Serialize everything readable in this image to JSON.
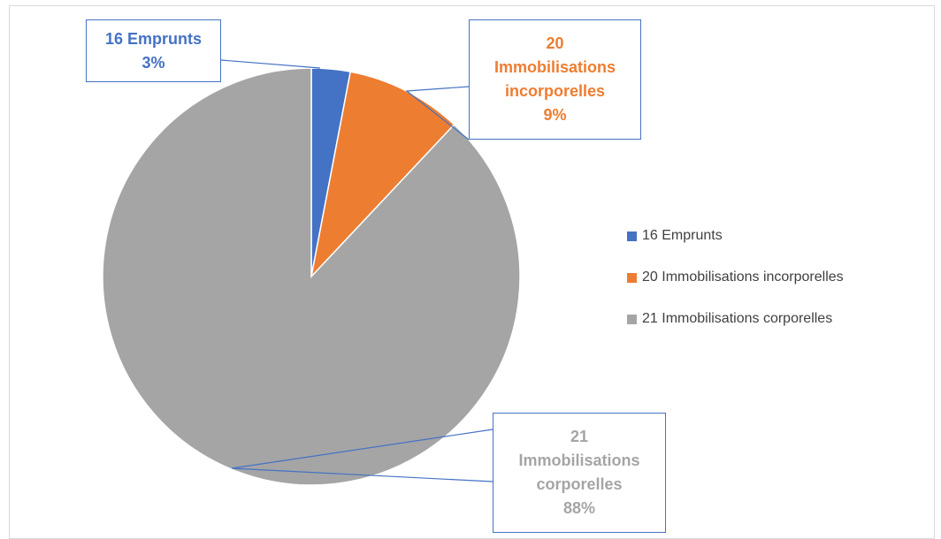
{
  "chart_data": {
    "type": "pie",
    "categories": [
      "16 Emprunts",
      "20 Immobilisations incorporelles",
      "21 Immobilisations corporelles"
    ],
    "values": [
      3,
      9,
      88
    ],
    "value_labels": [
      "3%",
      "9%",
      "88%"
    ],
    "colors": [
      "#4472c4",
      "#ed7d31",
      "#a5a5a5"
    ],
    "legend": "right"
  }
}
